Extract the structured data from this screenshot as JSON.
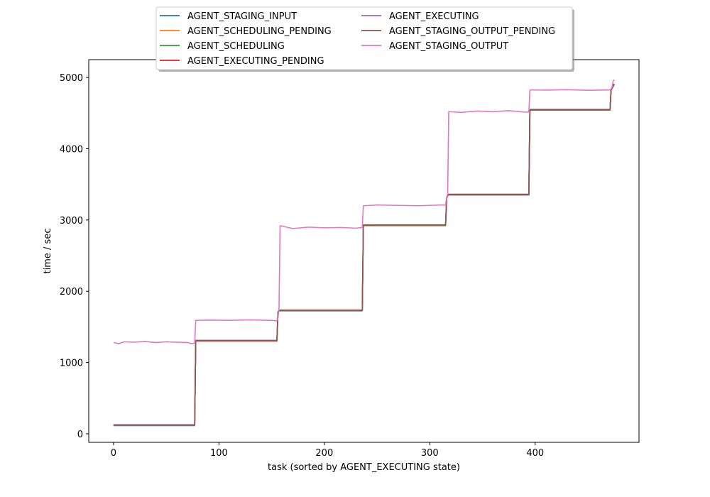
{
  "chart_data": {
    "type": "line",
    "xlabel": "task (sorted by AGENT_EXECUTING state)",
    "ylabel": "time / sec",
    "xlim": [
      -23.5,
      498.5
    ],
    "ylim": [
      -120,
      5250
    ],
    "xticks": [
      0,
      100,
      200,
      300,
      400
    ],
    "yticks": [
      0,
      1000,
      2000,
      3000,
      4000,
      5000
    ],
    "grid": false,
    "legend_position": "top-center",
    "series": [
      {
        "name": "AGENT_STAGING_INPUT",
        "color": "#1f77b4",
        "x": [
          0,
          77,
          78,
          155,
          156,
          157,
          158,
          236,
          237,
          315,
          316,
          317,
          318,
          394,
          395,
          396,
          471,
          472,
          475
        ],
        "y": [
          115,
          115,
          1300,
          1300,
          1700,
          1720,
          1725,
          1725,
          2920,
          2920,
          3300,
          3340,
          3350,
          3350,
          4540,
          4540,
          4540,
          4820,
          4900
        ]
      },
      {
        "name": "AGENT_SCHEDULING_PENDING",
        "color": "#ff7f0e",
        "x": [
          0,
          77,
          78,
          155,
          156,
          157,
          158,
          236,
          237,
          315,
          316,
          317,
          318,
          394,
          395,
          396,
          471,
          472,
          475
        ],
        "y": [
          118,
          118,
          1303,
          1303,
          1703,
          1723,
          1728,
          1728,
          2923,
          2923,
          3303,
          3343,
          3353,
          3353,
          4543,
          4543,
          4543,
          4823,
          4903
        ]
      },
      {
        "name": "AGENT_SCHEDULING",
        "color": "#2ca02c",
        "x": [
          0,
          77,
          78,
          155,
          156,
          157,
          158,
          236,
          237,
          315,
          316,
          317,
          318,
          394,
          395,
          396,
          471,
          472,
          475
        ],
        "y": [
          120,
          120,
          1305,
          1305,
          1705,
          1725,
          1730,
          1730,
          2925,
          2925,
          3305,
          3345,
          3355,
          3355,
          4545,
          4545,
          4545,
          4825,
          4905
        ]
      },
      {
        "name": "AGENT_EXECUTING_PENDING",
        "color": "#d62728",
        "x": [
          0,
          77,
          78,
          155,
          156,
          157,
          158,
          236,
          237,
          315,
          316,
          317,
          318,
          394,
          395,
          396,
          471,
          472,
          475
        ],
        "y": [
          122,
          122,
          1307,
          1307,
          1707,
          1727,
          1732,
          1732,
          2927,
          2927,
          3307,
          3347,
          3357,
          3357,
          4547,
          4547,
          4547,
          4827,
          4907
        ]
      },
      {
        "name": "AGENT_EXECUTING",
        "color": "#9467bd",
        "x": [
          0,
          77,
          78,
          155,
          156,
          157,
          158,
          236,
          237,
          315,
          316,
          317,
          318,
          394,
          395,
          396,
          471,
          472,
          475
        ],
        "y": [
          124,
          124,
          1309,
          1309,
          1709,
          1729,
          1734,
          1734,
          2929,
          2929,
          3309,
          3349,
          3359,
          3359,
          4549,
          4549,
          4549,
          4829,
          4909
        ]
      },
      {
        "name": "AGENT_STAGING_OUTPUT_PENDING",
        "color": "#8c564b",
        "x": [
          0,
          77,
          78,
          155,
          156,
          157,
          158,
          236,
          237,
          315,
          316,
          317,
          318,
          394,
          395,
          396,
          471,
          472,
          475
        ],
        "y": [
          126,
          126,
          1311,
          1311,
          1711,
          1731,
          1736,
          1736,
          2931,
          2931,
          3311,
          3351,
          3361,
          3361,
          4551,
          4551,
          4551,
          4831,
          4911
        ]
      },
      {
        "name": "AGENT_STAGING_OUTPUT",
        "color": "#e377c2",
        "x": [
          0,
          5,
          10,
          20,
          30,
          40,
          50,
          60,
          70,
          75,
          77,
          78,
          90,
          110,
          130,
          150,
          155,
          156,
          157,
          158,
          170,
          185,
          200,
          215,
          230,
          236,
          237,
          250,
          270,
          290,
          310,
          315,
          316,
          317,
          318,
          330,
          345,
          360,
          375,
          390,
          394,
          395,
          396,
          410,
          430,
          450,
          471,
          472,
          473,
          474,
          475
        ],
        "y": [
          1280,
          1265,
          1290,
          1285,
          1295,
          1280,
          1290,
          1285,
          1280,
          1265,
          1275,
          1590,
          1595,
          1592,
          1598,
          1590,
          1585,
          1620,
          1760,
          2920,
          2880,
          2900,
          2890,
          2895,
          2885,
          2895,
          3200,
          3210,
          3205,
          3200,
          3210,
          3210,
          3320,
          3360,
          4520,
          4510,
          4530,
          4520,
          4535,
          4515,
          4515,
          4820,
          4825,
          4822,
          4828,
          4820,
          4825,
          4840,
          4870,
          4950,
          4970
        ]
      }
    ]
  }
}
